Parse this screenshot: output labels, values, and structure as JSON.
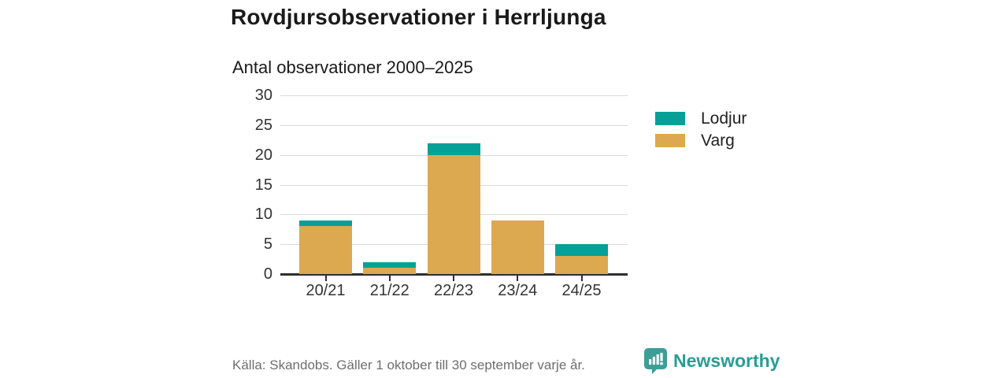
{
  "header": {
    "title": "Rovdjursobservationer i Herrljunga",
    "subtitle": "Antal observationer 2000–2025"
  },
  "chart_data": {
    "type": "bar",
    "stacked": true,
    "title": "Rovdjursobservationer i Herrljunga",
    "subtitle": "Antal observationer 2000–2025",
    "categories": [
      "20/21",
      "21/22",
      "22/23",
      "23/24",
      "24/25"
    ],
    "series": [
      {
        "name": "Lodjur",
        "color": "#05A098",
        "values": [
          1,
          1,
          2,
          0,
          2
        ]
      },
      {
        "name": "Varg",
        "color": "#DCA950",
        "values": [
          8,
          1,
          20,
          9,
          3
        ]
      }
    ],
    "stack_bottom_to_top": [
      "Varg",
      "Lodjur"
    ],
    "totals": [
      9,
      2,
      22,
      9,
      5
    ],
    "xlabel": "",
    "ylabel": "",
    "ylim": [
      0,
      30
    ],
    "yticks": [
      0,
      5,
      10,
      15,
      20,
      25,
      30
    ],
    "grid": true,
    "legend_position": "right",
    "gridline_color": "#dadada",
    "axis_color": "#2e2e2e"
  },
  "footer": {
    "source": "Källa: Skandobs. Gäller 1 oktober till 30 september varje år.",
    "brand": "Newsworthy",
    "brand_color": "#2a9c94",
    "logo_color": "#3d9e98"
  }
}
